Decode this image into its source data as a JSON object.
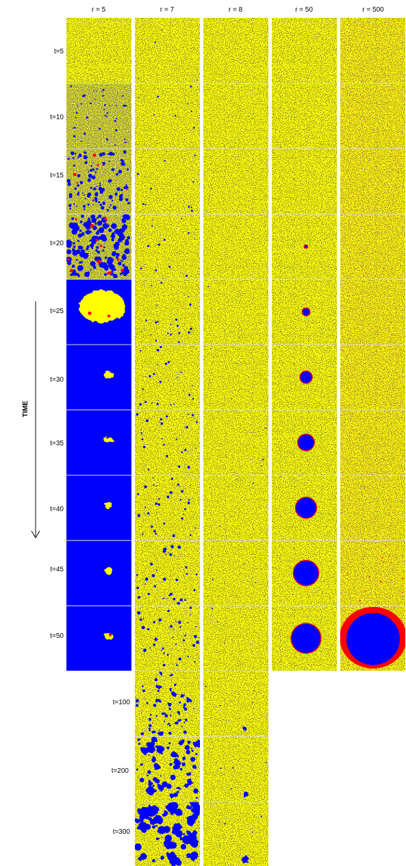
{
  "columns": [
    {
      "label": "r = 5",
      "count": 10
    },
    {
      "label": "r = 7",
      "count": 13
    },
    {
      "label": "r = 8",
      "count": 13
    },
    {
      "label": "r = 50",
      "count": 10
    },
    {
      "label": "r = 500",
      "count": 10
    }
  ],
  "time_labels": [
    "t=5",
    "t=10",
    "t=15",
    "t=20",
    "t=25",
    "t=30",
    "t=35",
    "t=40",
    "t=45",
    "t=50"
  ],
  "extra_time_labels": [
    "t=100",
    "t=200",
    "t=300"
  ],
  "axis_label": "TIME",
  "colors": {
    "yellow": "#ffff00",
    "blue": "#0000ff",
    "red": "#ff0000",
    "dark": "#222222",
    "separator": "#d6d6d6"
  }
}
